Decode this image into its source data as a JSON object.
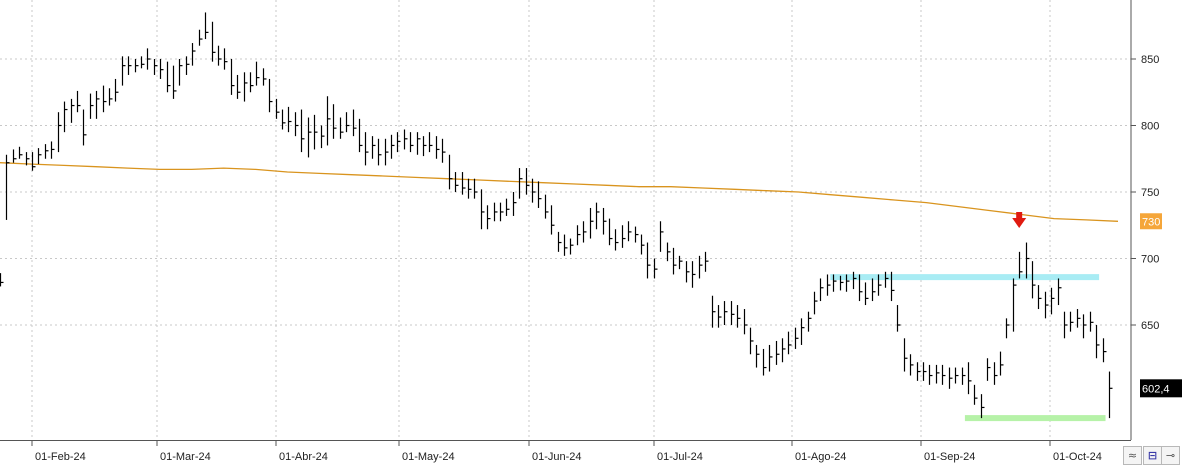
{
  "chart_data": {
    "type": "ohlc",
    "title": "",
    "xlabel": "",
    "ylabel": "",
    "x_tick_labels": [
      "01-Feb-24",
      "01-Mar-24",
      "01-Abr-24",
      "01-May-24",
      "01-Jun-24",
      "01-Jul-24",
      "01-Ago-24",
      "01-Sep-24",
      "01-Oct-24"
    ],
    "y_ticks": [
      650,
      700,
      750,
      800,
      850
    ],
    "ylim": [
      575,
      905
    ],
    "grid": true,
    "bars": [
      [
        679,
        689,
        682
      ],
      [
        729,
        778,
        772
      ],
      [
        772,
        782,
        775
      ],
      [
        775,
        784,
        778
      ],
      [
        770,
        780,
        775
      ],
      [
        766,
        780,
        769
      ],
      [
        771,
        783,
        778
      ],
      [
        775,
        786,
        781
      ],
      [
        775,
        788,
        782
      ],
      [
        780,
        810,
        800
      ],
      [
        795,
        818,
        812
      ],
      [
        802,
        820,
        815
      ],
      [
        810,
        826,
        815
      ],
      [
        785,
        812,
        793
      ],
      [
        805,
        824,
        815
      ],
      [
        805,
        826,
        820
      ],
      [
        810,
        830,
        818
      ],
      [
        815,
        828,
        820
      ],
      [
        818,
        835,
        825
      ],
      [
        830,
        852,
        845
      ],
      [
        838,
        852,
        845
      ],
      [
        840,
        850,
        845
      ],
      [
        843,
        852,
        846
      ],
      [
        842,
        858,
        850
      ],
      [
        838,
        850,
        845
      ],
      [
        835,
        850,
        842
      ],
      [
        825,
        848,
        830
      ],
      [
        820,
        845,
        826
      ],
      [
        830,
        850,
        845
      ],
      [
        838,
        852,
        846
      ],
      [
        845,
        862,
        856
      ],
      [
        860,
        872,
        865
      ],
      [
        865,
        885,
        870
      ],
      [
        848,
        878,
        855
      ],
      [
        845,
        860,
        850
      ],
      [
        842,
        858,
        848
      ],
      [
        823,
        850,
        830
      ],
      [
        820,
        838,
        825
      ],
      [
        818,
        840,
        832
      ],
      [
        825,
        840,
        830
      ],
      [
        830,
        848,
        836
      ],
      [
        830,
        843,
        835
      ],
      [
        810,
        835,
        818
      ],
      [
        805,
        820,
        810
      ],
      [
        797,
        812,
        802
      ],
      [
        795,
        814,
        803
      ],
      [
        792,
        810,
        800
      ],
      [
        780,
        812,
        790
      ],
      [
        776,
        806,
        795
      ],
      [
        782,
        808,
        795
      ],
      [
        783,
        800,
        792
      ],
      [
        785,
        822,
        805
      ],
      [
        790,
        816,
        798
      ],
      [
        790,
        806,
        795
      ],
      [
        795,
        810,
        800
      ],
      [
        792,
        812,
        798
      ],
      [
        780,
        805,
        785
      ],
      [
        770,
        795,
        780
      ],
      [
        775,
        792,
        785
      ],
      [
        770,
        790,
        778
      ],
      [
        770,
        790,
        780
      ],
      [
        775,
        793,
        785
      ],
      [
        780,
        795,
        788
      ],
      [
        782,
        797,
        790
      ],
      [
        780,
        795,
        785
      ],
      [
        778,
        795,
        790
      ],
      [
        777,
        792,
        785
      ],
      [
        780,
        795,
        785
      ],
      [
        775,
        792,
        782
      ],
      [
        772,
        790,
        780
      ],
      [
        752,
        778,
        760
      ],
      [
        750,
        765,
        755
      ],
      [
        748,
        765,
        753
      ],
      [
        745,
        760,
        752
      ],
      [
        745,
        760,
        750
      ],
      [
        722,
        752,
        735
      ],
      [
        722,
        740,
        730
      ],
      [
        728,
        742,
        735
      ],
      [
        728,
        742,
        735
      ],
      [
        732,
        745,
        737
      ],
      [
        732,
        750,
        742
      ],
      [
        745,
        768,
        760
      ],
      [
        748,
        768,
        755
      ],
      [
        742,
        760,
        750
      ],
      [
        738,
        758,
        745
      ],
      [
        730,
        748,
        735
      ],
      [
        718,
        740,
        725
      ],
      [
        705,
        720,
        712
      ],
      [
        702,
        718,
        708
      ],
      [
        703,
        715,
        710
      ],
      [
        710,
        725,
        718
      ],
      [
        712,
        728,
        720
      ],
      [
        715,
        738,
        728
      ],
      [
        722,
        742,
        735
      ],
      [
        718,
        738,
        728
      ],
      [
        710,
        730,
        715
      ],
      [
        706,
        722,
        712
      ],
      [
        708,
        725,
        715
      ],
      [
        713,
        728,
        720
      ],
      [
        712,
        724,
        718
      ],
      [
        703,
        718,
        710
      ],
      [
        685,
        712,
        695
      ],
      [
        685,
        700,
        692
      ],
      [
        705,
        728,
        720
      ],
      [
        698,
        712,
        705
      ],
      [
        688,
        708,
        695
      ],
      [
        692,
        702,
        698
      ],
      [
        682,
        698,
        690
      ],
      [
        678,
        698,
        688
      ],
      [
        685,
        702,
        695
      ],
      [
        690,
        705,
        698
      ],
      [
        648,
        672,
        660
      ],
      [
        648,
        665,
        656
      ],
      [
        650,
        668,
        660
      ],
      [
        650,
        668,
        658
      ],
      [
        648,
        665,
        655
      ],
      [
        643,
        662,
        650
      ],
      [
        628,
        648,
        638
      ],
      [
        618,
        635,
        628
      ],
      [
        612,
        632,
        618
      ],
      [
        615,
        635,
        626
      ],
      [
        620,
        638,
        628
      ],
      [
        622,
        640,
        632
      ],
      [
        628,
        645,
        635
      ],
      [
        632,
        648,
        640
      ],
      [
        635,
        655,
        648
      ],
      [
        645,
        660,
        655
      ],
      [
        658,
        675,
        668
      ],
      [
        668,
        685,
        678
      ],
      [
        672,
        688,
        680
      ],
      [
        675,
        688,
        683
      ],
      [
        676,
        687,
        682
      ],
      [
        675,
        688,
        683
      ],
      [
        677,
        690,
        685
      ],
      [
        668,
        688,
        675
      ],
      [
        665,
        682,
        670
      ],
      [
        668,
        685,
        675
      ],
      [
        672,
        688,
        680
      ],
      [
        678,
        690,
        685
      ],
      [
        668,
        690,
        676
      ],
      [
        645,
        665,
        650
      ],
      [
        615,
        640,
        625
      ],
      [
        612,
        628,
        620
      ],
      [
        608,
        622,
        615
      ],
      [
        608,
        622,
        615
      ],
      [
        605,
        620,
        612
      ],
      [
        606,
        620,
        614
      ],
      [
        605,
        620,
        612
      ],
      [
        602,
        618,
        610
      ],
      [
        606,
        618,
        612
      ],
      [
        605,
        618,
        612
      ],
      [
        598,
        622,
        608
      ],
      [
        590,
        605,
        595
      ],
      [
        580,
        598,
        588
      ],
      [
        608,
        625,
        618
      ],
      [
        605,
        622,
        612
      ],
      [
        612,
        630,
        620
      ],
      [
        640,
        655,
        650
      ],
      [
        645,
        685,
        680
      ],
      [
        685,
        705,
        690
      ],
      [
        685,
        712,
        700
      ],
      [
        670,
        698,
        680
      ],
      [
        662,
        680,
        670
      ],
      [
        655,
        675,
        665
      ],
      [
        658,
        678,
        670
      ],
      [
        665,
        685,
        678
      ],
      [
        640,
        660,
        650
      ],
      [
        645,
        660,
        652
      ],
      [
        648,
        662,
        655
      ],
      [
        640,
        658,
        650
      ],
      [
        645,
        660,
        652
      ],
      [
        625,
        650,
        635
      ],
      [
        622,
        640,
        630
      ],
      [
        580,
        615,
        602.4
      ]
    ],
    "series": [
      {
        "name": "",
        "values": [
          772,
          771,
          770,
          769,
          768,
          767,
          767,
          768,
          767,
          765,
          764,
          763,
          762,
          761,
          760,
          759,
          758,
          757,
          756,
          755,
          754,
          754,
          753,
          752,
          751,
          750,
          748,
          746,
          744,
          742,
          739,
          736,
          733,
          730,
          729,
          728
        ]
      }
    ],
    "price_label": "730",
    "last_label": "602,4",
    "resistance_zone": {
      "level": 686,
      "from_bar": 130,
      "to_bar": 171
    },
    "support_zone": {
      "level": 580,
      "from_bar": 151,
      "to_bar": 172
    },
    "signal_arrow": {
      "bar": 159,
      "direction": "down"
    },
    "colors": {
      "bars": "#000000",
      "moving_average": "#d9941e",
      "resistance_zone": "#a8ecf4",
      "support_zone": "#b6f2a8",
      "arrow": "#e01b10",
      "price_label_bg": "#f5a63a",
      "last_label_bg": "#000000",
      "grid": "#c8c8c8"
    }
  },
  "corner": {
    "left_icon": "scroll-arrows-icon",
    "middle_icon": "save-icon",
    "right_icon": "pin-icon"
  }
}
